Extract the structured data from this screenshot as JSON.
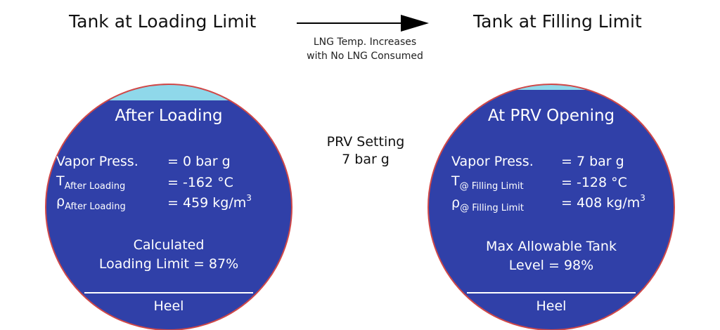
{
  "left_tank": {
    "title": "Tank at Loading Limit",
    "heading": "After Loading",
    "vapor_label": "Vapor Press.",
    "vapor_value": "= 0 bar g",
    "temp_symbol": "T",
    "temp_subscript": "After Loading",
    "temp_value": "= -162 °C",
    "density_symbol": "ρ",
    "density_subscript": "After Loading",
    "density_value": "= 459 kg/m",
    "density_exponent": "3",
    "note_line1": "Calculated",
    "note_line2": "Loading Limit = 87%",
    "heel_label": "Heel",
    "level_percent": 87
  },
  "right_tank": {
    "title": "Tank at Filling Limit",
    "heading": "At PRV Opening",
    "vapor_label": "Vapor Press.",
    "vapor_value": "= 7 bar g",
    "temp_symbol": "T",
    "temp_subscript": "@ Filling Limit",
    "temp_value": "= -128 °C",
    "density_symbol": "ρ",
    "density_subscript": "@ Filling Limit",
    "density_value": "= 408 kg/m",
    "density_exponent": "3",
    "note_line1": "Max Allowable Tank",
    "note_line2": "Level = 98%",
    "heel_label": "Heel",
    "level_percent": 98
  },
  "arrow": {
    "caption_line1": "LNG Temp. Increases",
    "caption_line2": "with No LNG Consumed"
  },
  "prv": {
    "line1": "PRV Setting",
    "line2": "7 bar g"
  },
  "colors": {
    "liquid": "#3040a8",
    "vapor_space": "#8fd8ea",
    "tank_outline": "#d04848",
    "heel_line": "#ffffff",
    "arrow": "#000000"
  }
}
